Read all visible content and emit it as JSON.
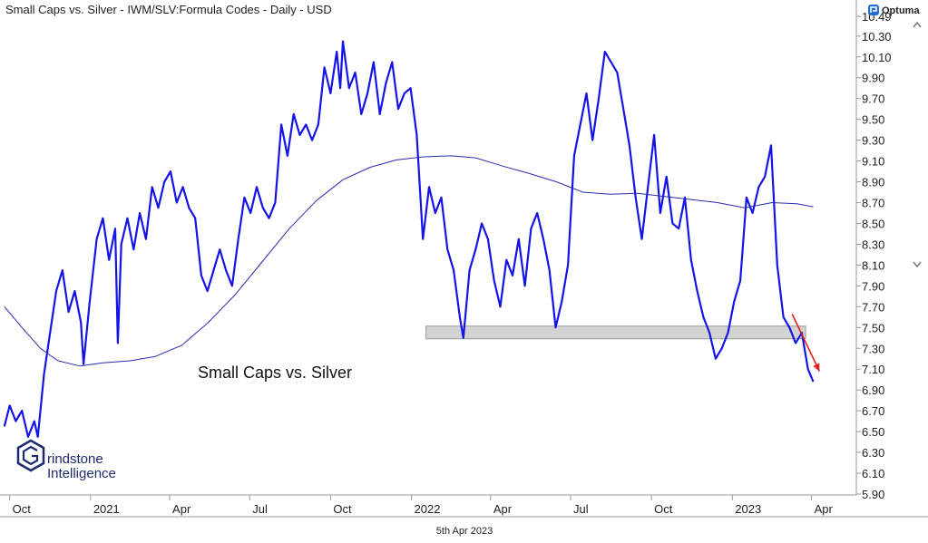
{
  "header": {
    "title": "Small Caps vs. Silver - IWM/SLV:Formula Codes - Daily - USD",
    "brand": "Optuma"
  },
  "footer": {
    "date": "5th Apr 2023"
  },
  "logo": {
    "line1": "rindstone",
    "line2": "Intelligence"
  },
  "chart_data": {
    "type": "line",
    "title": "Small Caps vs. Silver - IWM/SLV:Formula Codes - Daily - USD",
    "annotation": "Small Caps vs. Silver",
    "xlabel": "",
    "ylabel": "",
    "x_tick_labels": [
      "Oct",
      "2021",
      "Apr",
      "Jul",
      "Oct",
      "2022",
      "Apr",
      "Jul",
      "Oct",
      "2023",
      "Apr"
    ],
    "y_tick_labels": [
      "10.49",
      "10.30",
      "10.10",
      "9.90",
      "9.70",
      "9.50",
      "9.30",
      "9.10",
      "8.90",
      "8.70",
      "8.50",
      "8.30",
      "8.10",
      "7.90",
      "7.70",
      "7.50",
      "7.30",
      "7.10",
      "6.90",
      "6.70",
      "6.50",
      "6.30",
      "6.10",
      "5.90"
    ],
    "ylim": [
      5.9,
      10.49
    ],
    "y_scale": "linear",
    "grid": false,
    "y_axis_position": "right",
    "series": [
      {
        "role": "price",
        "color": "#1414e6",
        "points": [
          [
            "2020-09-25",
            6.55
          ],
          [
            "2020-10-01",
            6.75
          ],
          [
            "2020-10-08",
            6.6
          ],
          [
            "2020-10-15",
            6.7
          ],
          [
            "2020-10-22",
            6.45
          ],
          [
            "2020-10-29",
            6.6
          ],
          [
            "2020-11-02",
            6.45
          ],
          [
            "2020-11-09",
            7.05
          ],
          [
            "2020-11-16",
            7.45
          ],
          [
            "2020-11-23",
            7.85
          ],
          [
            "2020-11-30",
            8.05
          ],
          [
            "2020-12-07",
            7.65
          ],
          [
            "2020-12-14",
            7.85
          ],
          [
            "2020-12-21",
            7.55
          ],
          [
            "2020-12-24",
            7.15
          ],
          [
            "2020-12-31",
            7.75
          ],
          [
            "2021-01-08",
            8.35
          ],
          [
            "2021-01-15",
            8.55
          ],
          [
            "2021-01-22",
            8.15
          ],
          [
            "2021-01-29",
            8.45
          ],
          [
            "2021-02-01",
            7.35
          ],
          [
            "2021-02-05",
            8.3
          ],
          [
            "2021-02-12",
            8.55
          ],
          [
            "2021-02-19",
            8.25
          ],
          [
            "2021-02-26",
            8.6
          ],
          [
            "2021-03-05",
            8.35
          ],
          [
            "2021-03-12",
            8.85
          ],
          [
            "2021-03-19",
            8.65
          ],
          [
            "2021-03-26",
            8.9
          ],
          [
            "2021-04-02",
            9.0
          ],
          [
            "2021-04-09",
            8.7
          ],
          [
            "2021-04-16",
            8.85
          ],
          [
            "2021-04-23",
            8.65
          ],
          [
            "2021-04-30",
            8.55
          ],
          [
            "2021-05-07",
            8.0
          ],
          [
            "2021-05-14",
            7.85
          ],
          [
            "2021-05-21",
            8.05
          ],
          [
            "2021-05-28",
            8.25
          ],
          [
            "2021-06-04",
            8.05
          ],
          [
            "2021-06-11",
            7.9
          ],
          [
            "2021-06-18",
            8.35
          ],
          [
            "2021-06-25",
            8.75
          ],
          [
            "2021-07-02",
            8.6
          ],
          [
            "2021-07-09",
            8.85
          ],
          [
            "2021-07-16",
            8.65
          ],
          [
            "2021-07-23",
            8.55
          ],
          [
            "2021-07-30",
            8.7
          ],
          [
            "2021-08-06",
            9.45
          ],
          [
            "2021-08-13",
            9.15
          ],
          [
            "2021-08-20",
            9.55
          ],
          [
            "2021-08-27",
            9.35
          ],
          [
            "2021-09-03",
            9.45
          ],
          [
            "2021-09-10",
            9.3
          ],
          [
            "2021-09-17",
            9.45
          ],
          [
            "2021-09-24",
            10.0
          ],
          [
            "2021-10-01",
            9.75
          ],
          [
            "2021-10-08",
            10.15
          ],
          [
            "2021-10-12",
            9.8
          ],
          [
            "2021-10-15",
            10.25
          ],
          [
            "2021-10-22",
            9.8
          ],
          [
            "2021-10-29",
            9.95
          ],
          [
            "2021-11-05",
            9.55
          ],
          [
            "2021-11-12",
            9.75
          ],
          [
            "2021-11-19",
            10.05
          ],
          [
            "2021-11-26",
            9.55
          ],
          [
            "2021-12-03",
            9.85
          ],
          [
            "2021-12-10",
            10.05
          ],
          [
            "2021-12-17",
            9.6
          ],
          [
            "2021-12-24",
            9.75
          ],
          [
            "2021-12-31",
            9.8
          ],
          [
            "2022-01-07",
            9.35
          ],
          [
            "2022-01-14",
            8.35
          ],
          [
            "2022-01-21",
            8.85
          ],
          [
            "2022-01-28",
            8.6
          ],
          [
            "2022-02-04",
            8.75
          ],
          [
            "2022-02-11",
            8.25
          ],
          [
            "2022-02-18",
            8.05
          ],
          [
            "2022-02-25",
            7.6
          ],
          [
            "2022-03-01",
            7.4
          ],
          [
            "2022-03-08",
            8.05
          ],
          [
            "2022-03-15",
            8.25
          ],
          [
            "2022-03-22",
            8.5
          ],
          [
            "2022-03-29",
            8.35
          ],
          [
            "2022-04-05",
            7.95
          ],
          [
            "2022-04-12",
            7.7
          ],
          [
            "2022-04-19",
            8.15
          ],
          [
            "2022-04-26",
            8.0
          ],
          [
            "2022-05-03",
            8.35
          ],
          [
            "2022-05-10",
            7.9
          ],
          [
            "2022-05-17",
            8.45
          ],
          [
            "2022-05-24",
            8.6
          ],
          [
            "2022-05-31",
            8.35
          ],
          [
            "2022-06-07",
            8.05
          ],
          [
            "2022-06-14",
            7.5
          ],
          [
            "2022-06-21",
            7.75
          ],
          [
            "2022-06-28",
            8.1
          ],
          [
            "2022-07-05",
            9.15
          ],
          [
            "2022-07-12",
            9.45
          ],
          [
            "2022-07-19",
            9.75
          ],
          [
            "2022-07-26",
            9.3
          ],
          [
            "2022-08-02",
            9.7
          ],
          [
            "2022-08-09",
            10.15
          ],
          [
            "2022-08-16",
            10.05
          ],
          [
            "2022-08-23",
            9.95
          ],
          [
            "2022-08-30",
            9.6
          ],
          [
            "2022-09-06",
            9.25
          ],
          [
            "2022-09-13",
            8.75
          ],
          [
            "2022-09-20",
            8.35
          ],
          [
            "2022-09-27",
            8.85
          ],
          [
            "2022-10-04",
            9.35
          ],
          [
            "2022-10-11",
            8.6
          ],
          [
            "2022-10-18",
            8.95
          ],
          [
            "2022-10-25",
            8.5
          ],
          [
            "2022-11-01",
            8.45
          ],
          [
            "2022-11-08",
            8.75
          ],
          [
            "2022-11-15",
            8.15
          ],
          [
            "2022-11-22",
            7.85
          ],
          [
            "2022-11-29",
            7.6
          ],
          [
            "2022-12-06",
            7.45
          ],
          [
            "2022-12-13",
            7.2
          ],
          [
            "2022-12-20",
            7.3
          ],
          [
            "2022-12-27",
            7.45
          ],
          [
            "2023-01-03",
            7.75
          ],
          [
            "2023-01-10",
            7.95
          ],
          [
            "2023-01-17",
            8.75
          ],
          [
            "2023-01-24",
            8.6
          ],
          [
            "2023-01-31",
            8.85
          ],
          [
            "2023-02-07",
            8.95
          ],
          [
            "2023-02-14",
            9.25
          ],
          [
            "2023-02-21",
            8.1
          ],
          [
            "2023-02-28",
            7.6
          ],
          [
            "2023-03-07",
            7.5
          ],
          [
            "2023-03-14",
            7.35
          ],
          [
            "2023-03-21",
            7.45
          ],
          [
            "2023-03-28",
            7.1
          ],
          [
            "2023-04-03",
            6.98
          ]
        ]
      },
      {
        "role": "moving-average",
        "color": "#2b2bb0",
        "points": [
          [
            "2020-09-25",
            7.7
          ],
          [
            "2020-10-15",
            7.5
          ],
          [
            "2020-11-05",
            7.3
          ],
          [
            "2020-11-25",
            7.18
          ],
          [
            "2020-12-20",
            7.13
          ],
          [
            "2021-01-15",
            7.16
          ],
          [
            "2021-02-15",
            7.18
          ],
          [
            "2021-03-15",
            7.22
          ],
          [
            "2021-04-15",
            7.33
          ],
          [
            "2021-05-15",
            7.55
          ],
          [
            "2021-06-15",
            7.82
          ],
          [
            "2021-07-15",
            8.13
          ],
          [
            "2021-08-15",
            8.45
          ],
          [
            "2021-09-15",
            8.72
          ],
          [
            "2021-10-15",
            8.92
          ],
          [
            "2021-11-15",
            9.04
          ],
          [
            "2021-12-15",
            9.11
          ],
          [
            "2022-01-15",
            9.14
          ],
          [
            "2022-02-15",
            9.15
          ],
          [
            "2022-03-15",
            9.13
          ],
          [
            "2022-04-15",
            9.05
          ],
          [
            "2022-05-15",
            8.98
          ],
          [
            "2022-06-15",
            8.9
          ],
          [
            "2022-07-15",
            8.8
          ],
          [
            "2022-08-15",
            8.78
          ],
          [
            "2022-09-15",
            8.79
          ],
          [
            "2022-10-15",
            8.76
          ],
          [
            "2022-11-15",
            8.73
          ],
          [
            "2022-12-15",
            8.7
          ],
          [
            "2023-01-15",
            8.65
          ],
          [
            "2023-02-15",
            8.7
          ],
          [
            "2023-03-15",
            8.69
          ],
          [
            "2023-04-03",
            8.66
          ]
        ]
      }
    ],
    "support_zone": {
      "from": "2022-01-01",
      "to": "2023-04-15",
      "low": 7.37,
      "high": 7.47,
      "color": "#d3d3d3"
    },
    "arrow": {
      "from": [
        "2023-03-10",
        7.63
      ],
      "to": [
        "2023-04-10",
        7.08
      ],
      "color": "#e02020"
    }
  }
}
